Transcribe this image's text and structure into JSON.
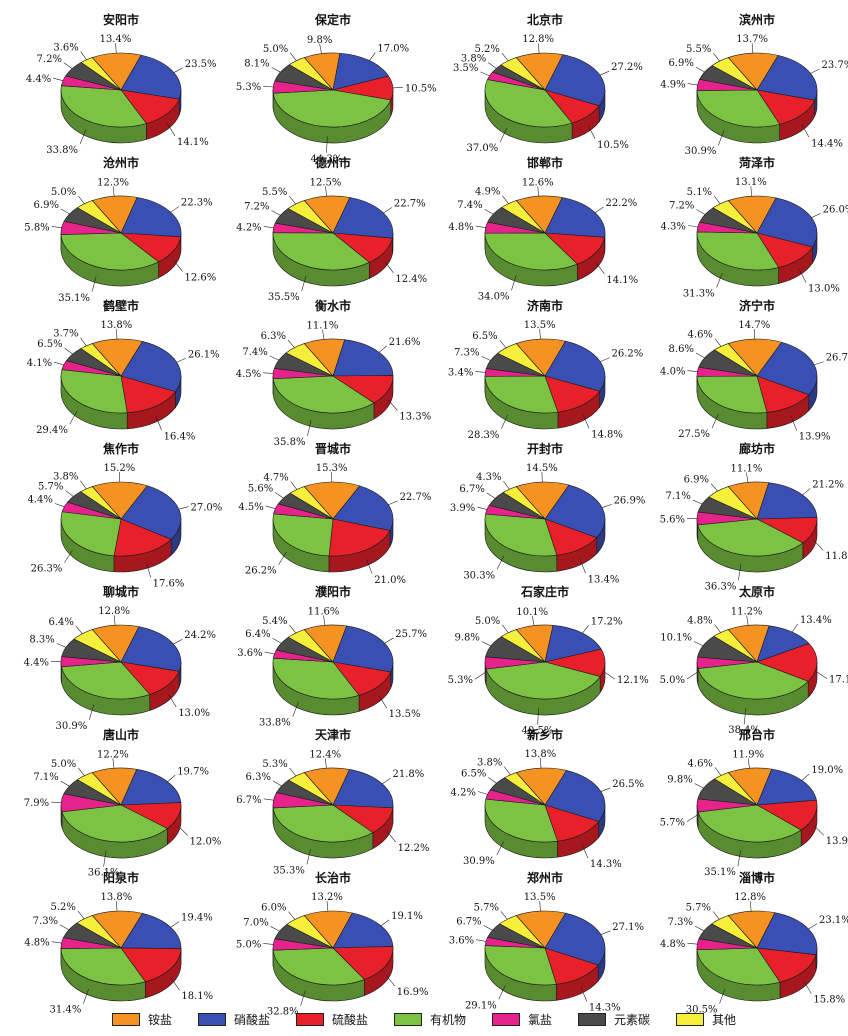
{
  "colors": {
    "ammonium": "#f59322",
    "nitrate": "#3a4fb3",
    "sulfate": "#e8202a",
    "organic": "#7cc243",
    "chloride": "#e5238a",
    "elemental_carbon": "#4a4a4a",
    "other": "#f5ef3b"
  },
  "legend": [
    {
      "key": "ammonium",
      "label": "铵盐"
    },
    {
      "key": "nitrate",
      "label": "硝酸盐"
    },
    {
      "key": "sulfate",
      "label": "硫酸盐"
    },
    {
      "key": "organic",
      "label": "有机物"
    },
    {
      "key": "chloride",
      "label": "氯盐"
    },
    {
      "key": "elemental_carbon",
      "label": "元素碳"
    },
    {
      "key": "other",
      "label": "其他"
    }
  ],
  "chart_data": {
    "type": "pie",
    "style": "3d-exploded",
    "category_order": [
      "ammonium",
      "nitrate",
      "sulfate",
      "organic",
      "chloride",
      "elemental_carbon",
      "other"
    ],
    "cities": [
      {
        "name": "安阳市",
        "values": {
          "organic": 33.8,
          "chloride": 4.4,
          "elemental_carbon": 7.2,
          "other": 3.6,
          "ammonium": 13.4,
          "nitrate": 23.5,
          "sulfate": 14.1
        }
      },
      {
        "name": "保定市",
        "values": {
          "organic": 44.3,
          "chloride": 5.3,
          "elemental_carbon": 8.1,
          "other": 5.0,
          "ammonium": 9.8,
          "nitrate": 17.0,
          "sulfate": 10.5
        }
      },
      {
        "name": "北京市",
        "values": {
          "organic": 37.0,
          "chloride": 3.5,
          "elemental_carbon": 3.8,
          "other": 5.2,
          "ammonium": 12.8,
          "nitrate": 27.2,
          "sulfate": 10.5
        }
      },
      {
        "name": "滨州市",
        "values": {
          "organic": 30.9,
          "chloride": 4.9,
          "elemental_carbon": 6.9,
          "other": 5.5,
          "ammonium": 13.7,
          "nitrate": 23.7,
          "sulfate": 14.4
        }
      },
      {
        "name": "沧州市",
        "values": {
          "organic": 35.1,
          "chloride": 5.8,
          "elemental_carbon": 6.9,
          "other": 5.0,
          "ammonium": 12.3,
          "nitrate": 22.3,
          "sulfate": 12.6
        }
      },
      {
        "name": "德州市",
        "values": {
          "organic": 35.5,
          "chloride": 4.2,
          "elemental_carbon": 7.2,
          "other": 5.5,
          "ammonium": 12.5,
          "nitrate": 22.7,
          "sulfate": 12.4
        }
      },
      {
        "name": "邯郸市",
        "values": {
          "organic": 34.0,
          "chloride": 4.8,
          "elemental_carbon": 7.4,
          "other": 4.9,
          "ammonium": 12.6,
          "nitrate": 22.2,
          "sulfate": 14.1
        }
      },
      {
        "name": "菏泽市",
        "values": {
          "organic": 31.3,
          "chloride": 4.3,
          "elemental_carbon": 7.2,
          "other": 5.1,
          "ammonium": 13.1,
          "nitrate": 26.0,
          "sulfate": 13.0
        }
      },
      {
        "name": "鹤壁市",
        "values": {
          "organic": 29.4,
          "chloride": 4.1,
          "elemental_carbon": 6.5,
          "other": 3.7,
          "ammonium": 13.8,
          "nitrate": 26.1,
          "sulfate": 16.4
        }
      },
      {
        "name": "衡水市",
        "values": {
          "organic": 35.8,
          "chloride": 4.5,
          "elemental_carbon": 7.4,
          "other": 6.3,
          "ammonium": 11.1,
          "nitrate": 21.6,
          "sulfate": 13.3
        }
      },
      {
        "name": "济南市",
        "values": {
          "organic": 28.3,
          "chloride": 3.4,
          "elemental_carbon": 7.3,
          "other": 6.5,
          "ammonium": 13.5,
          "nitrate": 26.2,
          "sulfate": 14.8
        }
      },
      {
        "name": "济宁市",
        "values": {
          "organic": 27.5,
          "chloride": 4.0,
          "elemental_carbon": 8.6,
          "other": 4.6,
          "ammonium": 14.7,
          "nitrate": 26.7,
          "sulfate": 13.9
        }
      },
      {
        "name": "焦作市",
        "values": {
          "organic": 26.3,
          "chloride": 4.4,
          "elemental_carbon": 5.7,
          "other": 3.8,
          "ammonium": 15.2,
          "nitrate": 27.0,
          "sulfate": 17.6
        }
      },
      {
        "name": "晋城市",
        "values": {
          "organic": 26.2,
          "chloride": 4.5,
          "elemental_carbon": 5.6,
          "other": 4.7,
          "ammonium": 15.3,
          "nitrate": 22.7,
          "sulfate": 21.0
        }
      },
      {
        "name": "开封市",
        "values": {
          "organic": 30.3,
          "chloride": 3.9,
          "elemental_carbon": 6.7,
          "other": 4.3,
          "ammonium": 14.5,
          "nitrate": 26.9,
          "sulfate": 13.4
        }
      },
      {
        "name": "廊坊市",
        "values": {
          "organic": 36.3,
          "chloride": 5.6,
          "elemental_carbon": 7.1,
          "other": 6.9,
          "ammonium": 11.1,
          "nitrate": 21.2,
          "sulfate": 11.8
        }
      },
      {
        "name": "聊城市",
        "values": {
          "organic": 30.9,
          "chloride": 4.4,
          "elemental_carbon": 8.3,
          "other": 6.4,
          "ammonium": 12.8,
          "nitrate": 24.2,
          "sulfate": 13.0
        }
      },
      {
        "name": "濮阳市",
        "values": {
          "organic": 33.8,
          "chloride": 3.6,
          "elemental_carbon": 6.4,
          "other": 5.4,
          "ammonium": 11.6,
          "nitrate": 25.7,
          "sulfate": 13.5
        }
      },
      {
        "name": "石家庄市",
        "values": {
          "organic": 40.5,
          "chloride": 5.3,
          "elemental_carbon": 9.8,
          "other": 5.0,
          "ammonium": 10.1,
          "nitrate": 17.2,
          "sulfate": 12.1
        }
      },
      {
        "name": "太原市",
        "values": {
          "organic": 38.4,
          "chloride": 5.0,
          "elemental_carbon": 10.1,
          "other": 4.8,
          "ammonium": 11.2,
          "nitrate": 13.4,
          "sulfate": 17.1
        }
      },
      {
        "name": "唐山市",
        "values": {
          "organic": 36.1,
          "chloride": 7.9,
          "elemental_carbon": 7.1,
          "other": 5.0,
          "ammonium": 12.2,
          "nitrate": 19.7,
          "sulfate": 12.0
        }
      },
      {
        "name": "天津市",
        "values": {
          "organic": 35.3,
          "chloride": 6.7,
          "elemental_carbon": 6.3,
          "other": 5.3,
          "ammonium": 12.4,
          "nitrate": 21.8,
          "sulfate": 12.2
        }
      },
      {
        "name": "新乡市",
        "values": {
          "organic": 30.9,
          "chloride": 4.2,
          "elemental_carbon": 6.5,
          "other": 3.8,
          "ammonium": 13.8,
          "nitrate": 26.5,
          "sulfate": 14.3
        }
      },
      {
        "name": "邢台市",
        "values": {
          "organic": 35.1,
          "chloride": 5.7,
          "elemental_carbon": 9.8,
          "other": 4.6,
          "ammonium": 11.9,
          "nitrate": 19.0,
          "sulfate": 13.9
        }
      },
      {
        "name": "阳泉市",
        "values": {
          "organic": 31.4,
          "chloride": 4.8,
          "elemental_carbon": 7.3,
          "other": 5.2,
          "ammonium": 13.8,
          "nitrate": 19.4,
          "sulfate": 18.1
        }
      },
      {
        "name": "长治市",
        "values": {
          "organic": 32.8,
          "chloride": 5.0,
          "elemental_carbon": 7.0,
          "other": 6.0,
          "ammonium": 13.2,
          "nitrate": 19.1,
          "sulfate": 16.9
        }
      },
      {
        "name": "郑州市",
        "values": {
          "organic": 29.1,
          "chloride": 3.6,
          "elemental_carbon": 6.7,
          "other": 5.7,
          "ammonium": 13.5,
          "nitrate": 27.1,
          "sulfate": 14.3
        }
      },
      {
        "name": "淄博市",
        "values": {
          "organic": 30.5,
          "chloride": 4.8,
          "elemental_carbon": 7.3,
          "other": 5.7,
          "ammonium": 12.8,
          "nitrate": 23.1,
          "sulfate": 15.8
        }
      }
    ]
  }
}
